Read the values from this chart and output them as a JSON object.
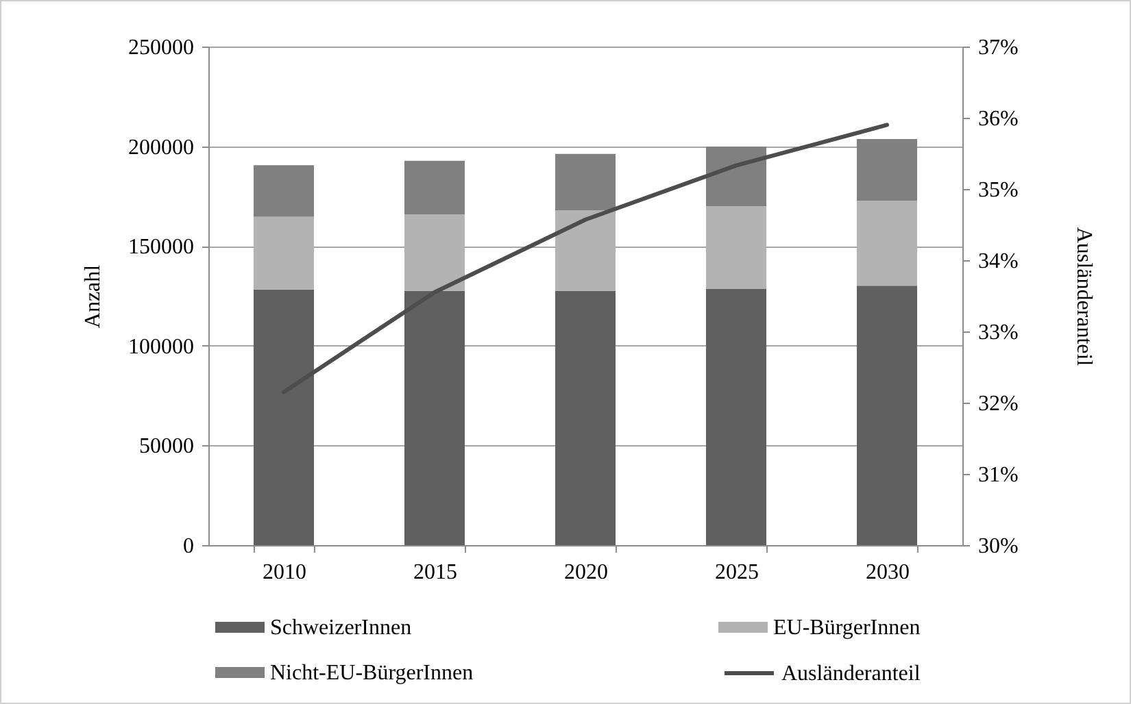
{
  "chart_data": {
    "type": "bar",
    "stacked": true,
    "categories": [
      "2010",
      "2015",
      "2020",
      "2025",
      "2030"
    ],
    "ylabel": "Anzahl",
    "y2label": "Ausländeranteil",
    "ylim": [
      0,
      250000
    ],
    "yticks": [
      0,
      50000,
      100000,
      150000,
      200000,
      250000
    ],
    "y2lim": [
      30,
      37
    ],
    "y2ticks": [
      {
        "value": 30,
        "label": "30%"
      },
      {
        "value": 31,
        "label": "31%"
      },
      {
        "value": 32,
        "label": "32%"
      },
      {
        "value": 33,
        "label": "33%"
      },
      {
        "value": 34,
        "label": "34%"
      },
      {
        "value": 35,
        "label": "35%"
      },
      {
        "value": 36,
        "label": "36%"
      },
      {
        "value": 37,
        "label": "37%"
      }
    ],
    "series": [
      {
        "name": "SchweizerInnen",
        "color": "#606060",
        "values": [
          128200,
          127500,
          127500,
          128400,
          130100
        ]
      },
      {
        "name": "EU-BürgerInnen",
        "color": "#b3b3b3",
        "values": [
          36500,
          38300,
          40400,
          41500,
          42600
        ]
      },
      {
        "name": "Nicht-EU-BürgerInnen",
        "color": "#808080",
        "values": [
          25800,
          26900,
          28300,
          30000,
          30900
        ]
      },
      {
        "name": "Ausländeranteil",
        "type": "line",
        "axis": "y2",
        "color": "#4d4d4d",
        "values": [
          32.15,
          33.55,
          34.57,
          35.33,
          35.9
        ]
      }
    ],
    "grid": "y",
    "legend": "bottom"
  }
}
